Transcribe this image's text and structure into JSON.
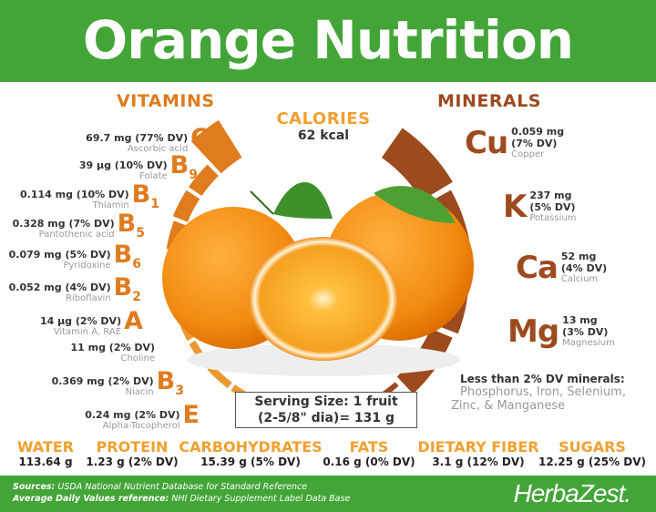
{
  "title": "Orange Nutrition",
  "colors": {
    "green": "#43a538",
    "vitamin": "#e07b1e",
    "mineral": "#9c4a1e",
    "macro": "#f0a030"
  },
  "vitamins_heading": "VITAMINS",
  "minerals_heading": "MINERALS",
  "calories": {
    "label": "CALORIES",
    "value": "62 kcal"
  },
  "vitamins": [
    {
      "letter": "C",
      "sub": "",
      "amount": "69.7 mg (77% DV)",
      "name": "Ascorbic acid",
      "dv": 77
    },
    {
      "letter": "B",
      "sub": "9",
      "amount": "39 µg (10% DV)",
      "name": "Folate",
      "dv": 10
    },
    {
      "letter": "B",
      "sub": "1",
      "amount": "0.114 mg (10% DV)",
      "name": "Thiamin",
      "dv": 10
    },
    {
      "letter": "B",
      "sub": "5",
      "amount": "0.328 mg (7% DV)",
      "name": "Pantothenic acid",
      "dv": 7
    },
    {
      "letter": "B",
      "sub": "6",
      "amount": "0.079 mg (5% DV)",
      "name": "Pyridoxine",
      "dv": 5
    },
    {
      "letter": "B",
      "sub": "2",
      "amount": "0.052 mg (4% DV)",
      "name": "Riboflavin",
      "dv": 4
    },
    {
      "letter": "A",
      "sub": "",
      "amount": "14 µg (2% DV)",
      "name": "Vitamin A, RAE",
      "dv": 2
    },
    {
      "letter": "",
      "sub": "",
      "amount": "11 mg (2% DV)",
      "name": "Choline",
      "dv": 2
    },
    {
      "letter": "B",
      "sub": "3",
      "amount": "0.369 mg (2% DV)",
      "name": "Niacin",
      "dv": 2
    },
    {
      "letter": "E",
      "sub": "",
      "amount": "0.24 mg (2% DV)",
      "name": "Alpha-Tocopherol",
      "dv": 2
    }
  ],
  "minerals": [
    {
      "symbol": "Cu",
      "amount": "0.059 mg",
      "dv_text": "(7% DV)",
      "name": "Copper",
      "dv": 7
    },
    {
      "symbol": "K",
      "amount": "237 mg",
      "dv_text": "(5% DV)",
      "name": "Potassium",
      "dv": 5
    },
    {
      "symbol": "Ca",
      "amount": "52 mg",
      "dv_text": "(4% DV)",
      "name": "Calcium",
      "dv": 4
    },
    {
      "symbol": "Mg",
      "amount": "13 mg",
      "dv_text": "(3% DV)",
      "name": "Magnesium",
      "dv": 3
    }
  ],
  "minor_minerals": {
    "heading": "Less than 2% DV minerals:",
    "line1": "Phosphorus, Iron, Selenium,",
    "line2": "Zinc, & Manganese"
  },
  "serving": {
    "line1": "Serving Size: 1 fruit",
    "line2": "(2-5/8\" dia)= 131 g"
  },
  "macros": [
    {
      "label": "WATER",
      "value": "113.64 g"
    },
    {
      "label": "PROTEIN",
      "value": "1.23 g (2% DV)"
    },
    {
      "label": "CARBOHYDRATES",
      "value": "15.39 g (5% DV)"
    },
    {
      "label": "FATS",
      "value": "0.16 g (0% DV)"
    },
    {
      "label": "DIETARY FIBER",
      "value": "3.1 g (12% DV)"
    },
    {
      "label": "SUGARS",
      "value": "12.25 g (25% DV)"
    }
  ],
  "footer": {
    "sources_label": "Sources:",
    "sources": "USDA National Nutrient Database for Standard Reference",
    "dv_label": "Average Daily Values reference:",
    "dv_ref": "NHI Dietary Supplement Label Data Base",
    "brand": "HerbaZest."
  }
}
